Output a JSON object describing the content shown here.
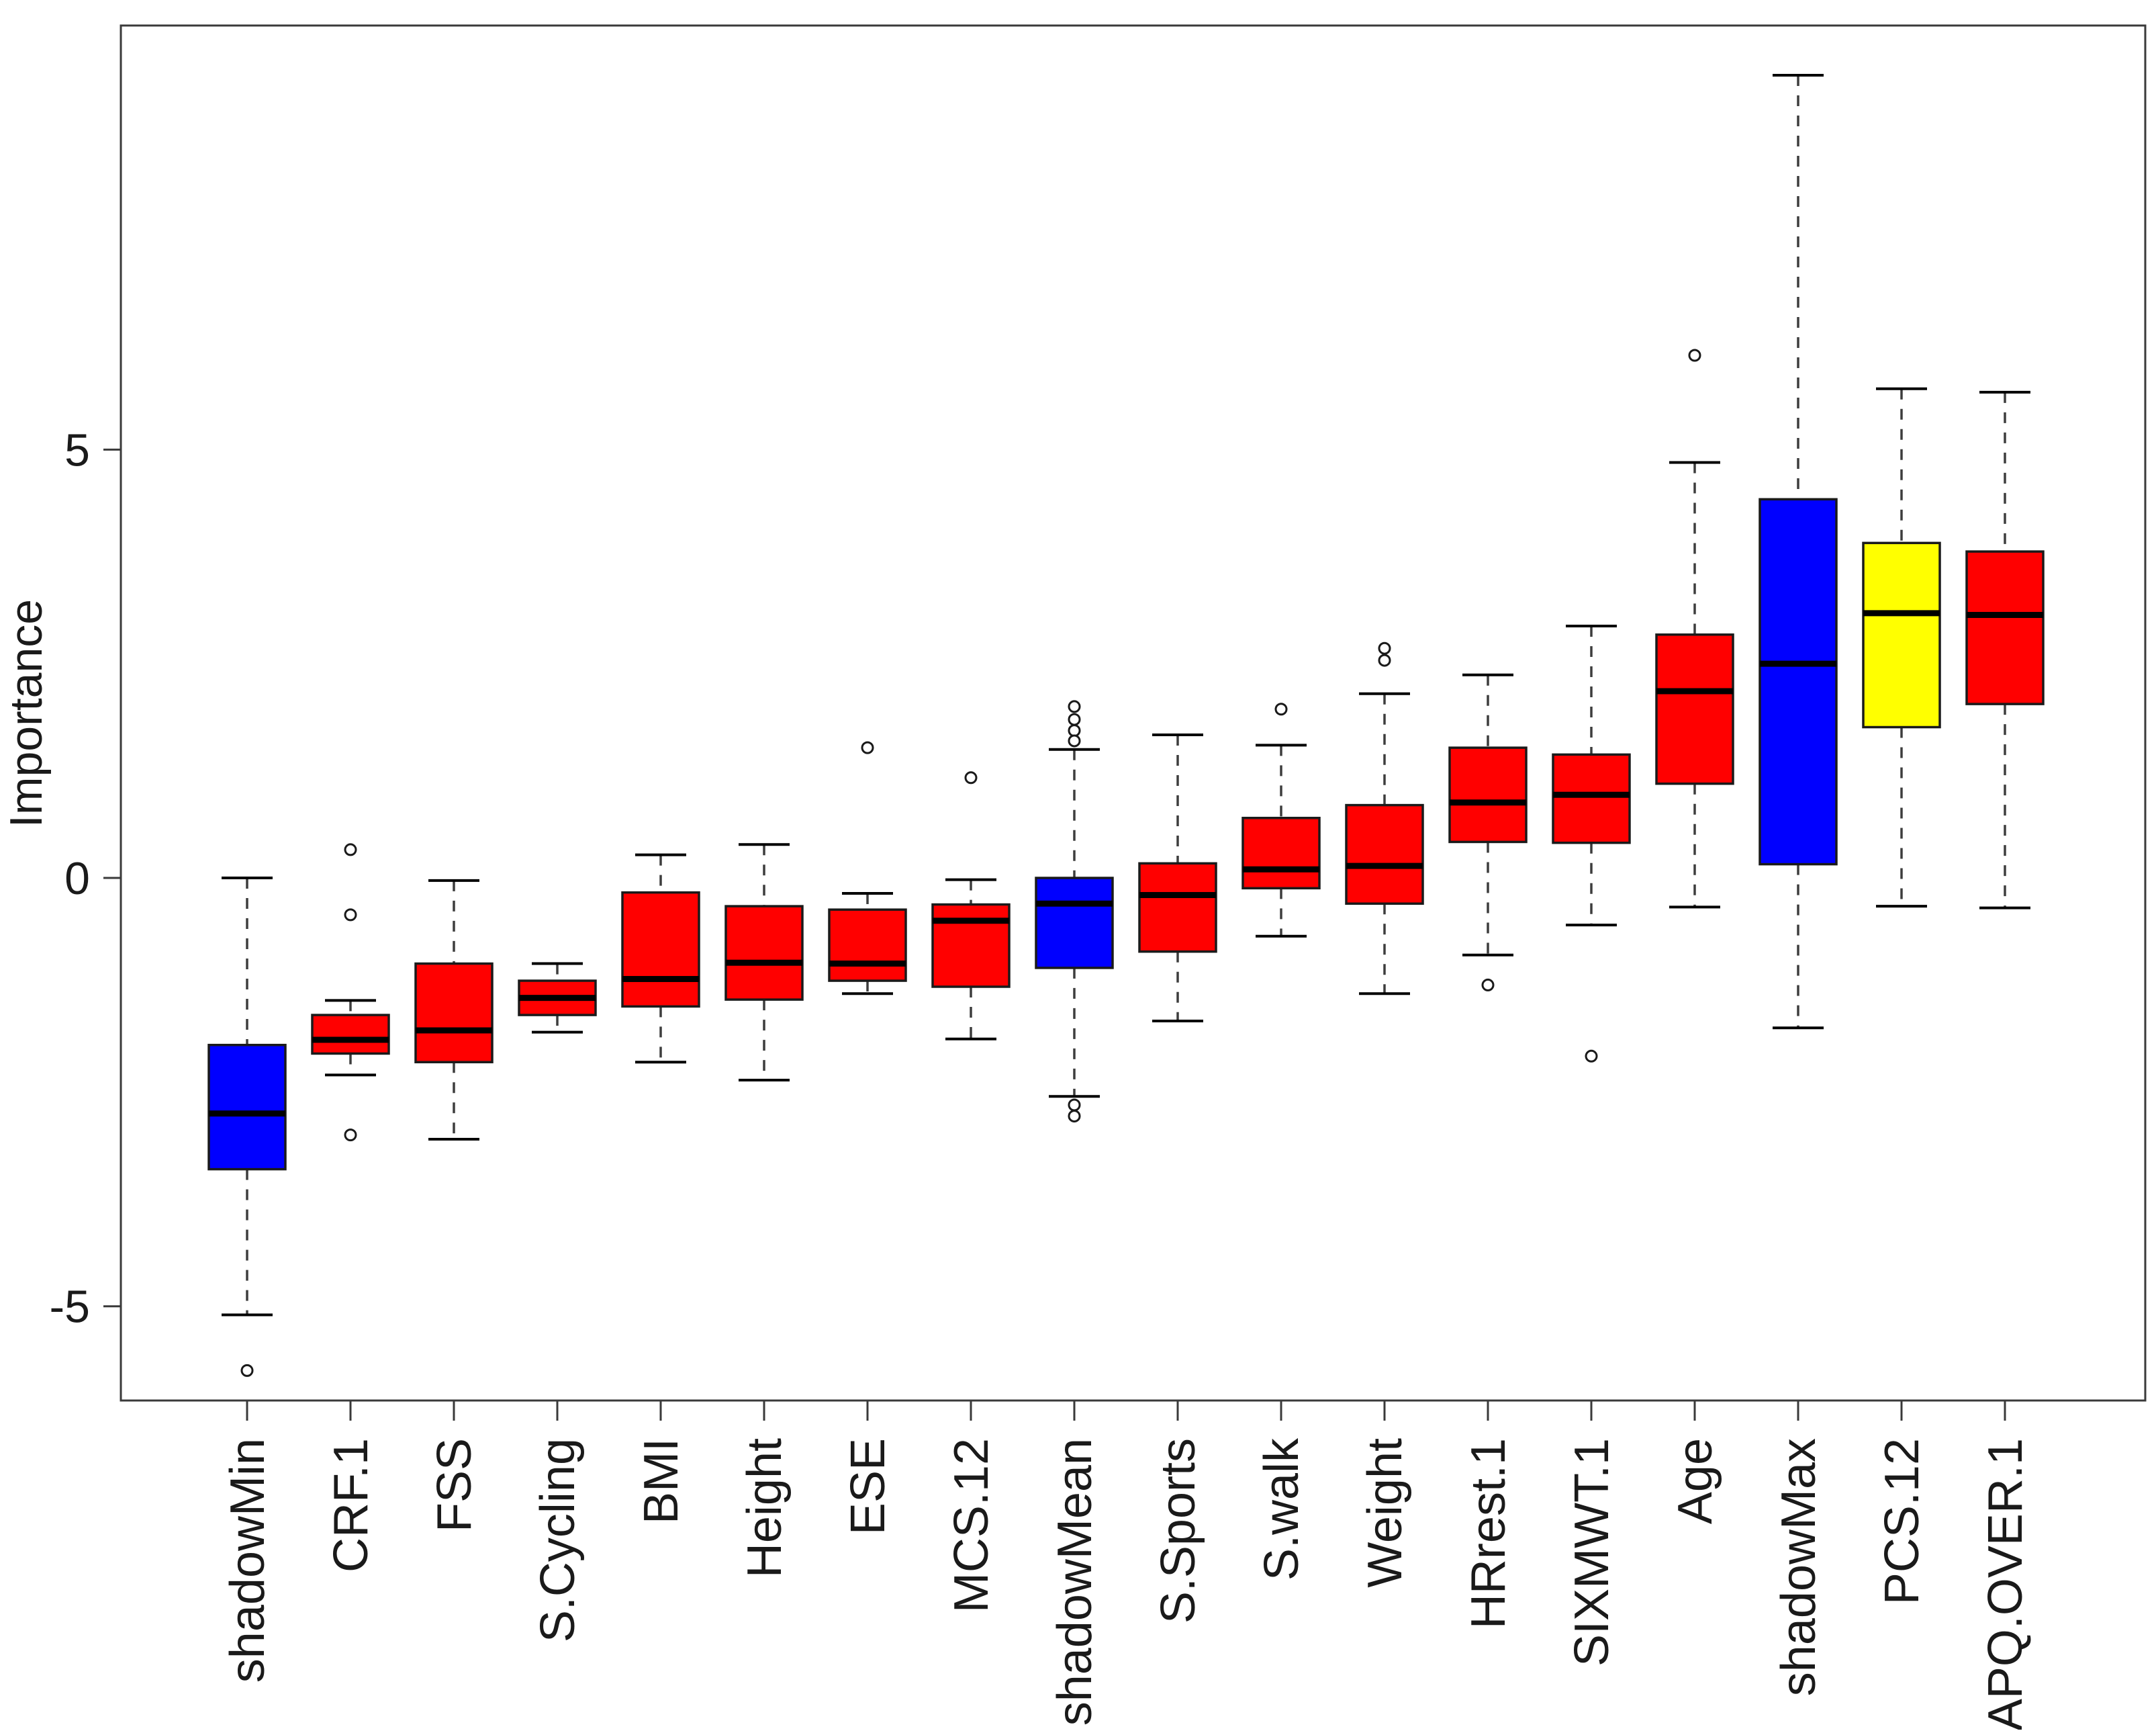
{
  "page": {
    "background": "#ffffff"
  },
  "chart_data": {
    "type": "boxplot",
    "title": "",
    "xlabel": "",
    "ylabel": "Importance",
    "yticks": [
      5,
      0,
      -5
    ],
    "ylim": [
      -6.1,
      9.95
    ],
    "grid": false,
    "legend": null,
    "palette": {
      "shadow_attribute_box": "#0000FF",
      "real_attribute_box": "#FF0000",
      "tentative_attribute_box": "#FFFF00",
      "box_border": "#1a1a1a",
      "median_line": "#000000",
      "whisker_line": "#3d3d3d",
      "axis_line": "#3a3a3a"
    },
    "categories": [
      "shadowMin",
      "CRF.1",
      "FSS",
      "S.Cycling",
      "BMI",
      "Height",
      "ESE",
      "MCS.12",
      "shadowMean",
      "S.Sports",
      "S.walk",
      "Weight",
      "HRrest.1",
      "SIXMWT.1",
      "Age",
      "shadowMax",
      "PCS.12",
      "APQ.OVER.1"
    ],
    "series": [
      {
        "label": "shadowMin",
        "color": "#0000FF",
        "whisker_low": -5.1,
        "q1": -3.4,
        "median": -2.75,
        "q3": -1.95,
        "whisker_high": 0.0,
        "outliers": [
          -5.75
        ]
      },
      {
        "label": "CRF.1",
        "color": "#FF0000",
        "whisker_low": -2.3,
        "q1": -2.05,
        "median": -1.89,
        "q3": -1.6,
        "whisker_high": -1.43,
        "outliers": [
          0.33,
          -0.43,
          -3.0
        ]
      },
      {
        "label": "FSS",
        "color": "#FF0000",
        "whisker_low": -3.05,
        "q1": -2.15,
        "median": -1.78,
        "q3": -1.0,
        "whisker_high": -0.03,
        "outliers": []
      },
      {
        "label": "S.Cycling",
        "color": "#FF0000",
        "whisker_low": -1.8,
        "q1": -1.6,
        "median": -1.4,
        "q3": -1.2,
        "whisker_high": -1.0,
        "outliers": []
      },
      {
        "label": "BMI",
        "color": "#FF0000",
        "whisker_low": -2.15,
        "q1": -1.5,
        "median": -1.18,
        "q3": -0.17,
        "whisker_high": 0.27,
        "outliers": []
      },
      {
        "label": "Height",
        "color": "#FF0000",
        "whisker_low": -2.36,
        "q1": -1.42,
        "median": -0.99,
        "q3": -0.33,
        "whisker_high": 0.39,
        "outliers": []
      },
      {
        "label": "ESE",
        "color": "#FF0000",
        "whisker_low": -1.35,
        "q1": -1.2,
        "median": -1.0,
        "q3": -0.37,
        "whisker_high": -0.18,
        "outliers": [
          1.52
        ]
      },
      {
        "label": "MCS.12",
        "color": "#FF0000",
        "whisker_low": -1.88,
        "q1": -1.27,
        "median": -0.5,
        "q3": -0.31,
        "whisker_high": -0.02,
        "outliers": [
          1.17
        ]
      },
      {
        "label": "shadowMean",
        "color": "#0000FF",
        "whisker_low": -2.55,
        "q1": -1.05,
        "median": -0.3,
        "q3": 0.0,
        "whisker_high": 1.5,
        "outliers": [
          2.0,
          1.85,
          1.72,
          1.6,
          -2.65,
          -2.78
        ]
      },
      {
        "label": "S.Sports",
        "color": "#FF0000",
        "whisker_low": -1.67,
        "q1": -0.86,
        "median": -0.2,
        "q3": 0.17,
        "whisker_high": 1.67,
        "outliers": []
      },
      {
        "label": "S.walk",
        "color": "#FF0000",
        "whisker_low": -0.68,
        "q1": -0.12,
        "median": 0.1,
        "q3": 0.7,
        "whisker_high": 1.55,
        "outliers": [
          1.97
        ]
      },
      {
        "label": "Weight",
        "color": "#FF0000",
        "whisker_low": -1.35,
        "q1": -0.3,
        "median": 0.14,
        "q3": 0.85,
        "whisker_high": 2.15,
        "outliers": [
          2.68,
          2.54
        ]
      },
      {
        "label": "HRrest.1",
        "color": "#FF0000",
        "whisker_low": -0.9,
        "q1": 0.42,
        "median": 0.88,
        "q3": 1.52,
        "whisker_high": 2.37,
        "outliers": [
          -1.25
        ]
      },
      {
        "label": "SIXMWT.1",
        "color": "#FF0000",
        "whisker_low": -0.55,
        "q1": 0.41,
        "median": 0.97,
        "q3": 1.44,
        "whisker_high": 2.94,
        "outliers": [
          -2.08
        ]
      },
      {
        "label": "Age",
        "color": "#FF0000",
        "whisker_low": -0.34,
        "q1": 1.1,
        "median": 2.18,
        "q3": 2.84,
        "whisker_high": 4.85,
        "outliers": [
          6.1
        ]
      },
      {
        "label": "shadowMax",
        "color": "#0000FF",
        "whisker_low": -1.75,
        "q1": 0.16,
        "median": 2.5,
        "q3": 4.42,
        "whisker_high": 9.37,
        "outliers": []
      },
      {
        "label": "PCS.12",
        "color": "#FFFF00",
        "whisker_low": -0.33,
        "q1": 1.76,
        "median": 3.09,
        "q3": 3.91,
        "whisker_high": 5.71,
        "outliers": []
      },
      {
        "label": "APQ.OVER.1",
        "color": "#FF0000",
        "whisker_low": -0.35,
        "q1": 2.03,
        "median": 3.07,
        "q3": 3.81,
        "whisker_high": 5.67,
        "outliers": []
      }
    ]
  }
}
